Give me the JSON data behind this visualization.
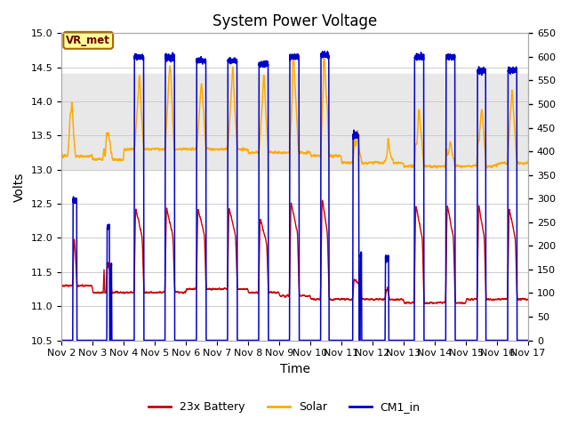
{
  "title": "System Power Voltage",
  "xlabel": "Time",
  "ylabel": "Volts",
  "xlim_days": [
    2,
    17
  ],
  "ylim": [
    10.5,
    15.0
  ],
  "ylim_right": [
    0,
    650
  ],
  "yticks_left": [
    10.5,
    11.0,
    11.5,
    12.0,
    12.5,
    13.0,
    13.5,
    14.0,
    14.5,
    15.0
  ],
  "yticks_right": [
    0,
    50,
    100,
    150,
    200,
    250,
    300,
    350,
    400,
    450,
    500,
    550,
    600,
    650
  ],
  "xtick_labels": [
    "Nov 2",
    "Nov 3",
    "Nov 4",
    "Nov 5",
    "Nov 6",
    "Nov 7",
    "Nov 8",
    "Nov 9",
    "Nov 10",
    "Nov 11",
    "Nov 12",
    "Nov 13",
    "Nov 14",
    "Nov 15",
    "Nov 16",
    "Nov 17"
  ],
  "band_y1": 13.0,
  "band_y2": 14.4,
  "band_color": "#e8e8e8",
  "battery_color": "#cc0000",
  "solar_color": "#ffaa00",
  "cm1_color": "#0000cc",
  "legend_labels": [
    "23x Battery",
    "Solar",
    "CM1_in"
  ],
  "vr_met_label": "VR_met",
  "vr_met_box_color": "#ffff99",
  "vr_met_box_edge": "#aa6600",
  "vr_met_text_color": "#660000",
  "background_color": "#ffffff",
  "grid_color": "#cccccc",
  "title_fontsize": 12,
  "axis_fontsize": 10,
  "tick_fontsize": 8
}
